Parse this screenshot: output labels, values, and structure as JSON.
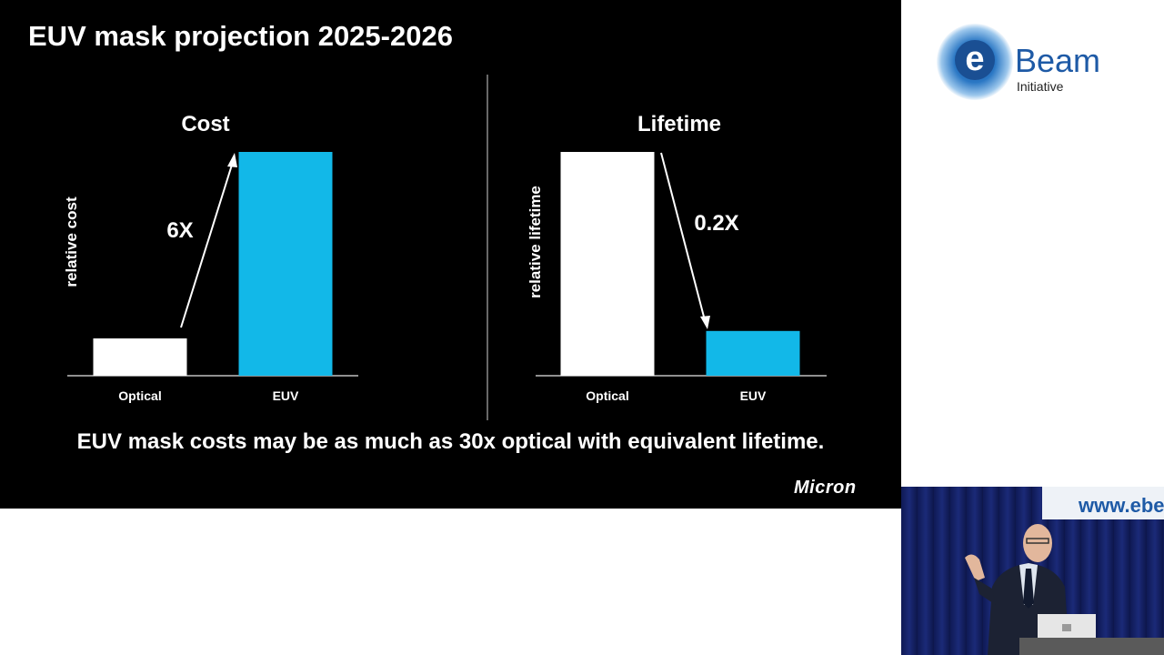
{
  "slide": {
    "title": "EUV mask projection 2025-2026",
    "caption": "EUV mask costs may be as much as 30x optical with equivalent lifetime.",
    "logo_text": "Micron"
  },
  "chart_data": [
    {
      "type": "bar",
      "title": "Cost",
      "ylabel": "relative cost",
      "xlabel": "",
      "categories": [
        "Optical",
        "EUV"
      ],
      "values": [
        1,
        6
      ],
      "colors": [
        "#ffffff",
        "#12b8e8"
      ],
      "annotation": "6X",
      "annotation_arrow": "up",
      "grid": false
    },
    {
      "type": "bar",
      "title": "Lifetime",
      "ylabel": "relative lifetime",
      "xlabel": "",
      "categories": [
        "Optical",
        "EUV"
      ],
      "values": [
        1,
        0.2
      ],
      "colors": [
        "#ffffff",
        "#12b8e8"
      ],
      "annotation": "0.2X",
      "annotation_arrow": "down",
      "grid": false
    }
  ],
  "branding": {
    "ebeam_letter": "e",
    "ebeam_word": "Beam",
    "ebeam_sub": "Initiative",
    "accent": "#1e5aa6"
  },
  "video": {
    "banner_text": "www.ebe"
  }
}
